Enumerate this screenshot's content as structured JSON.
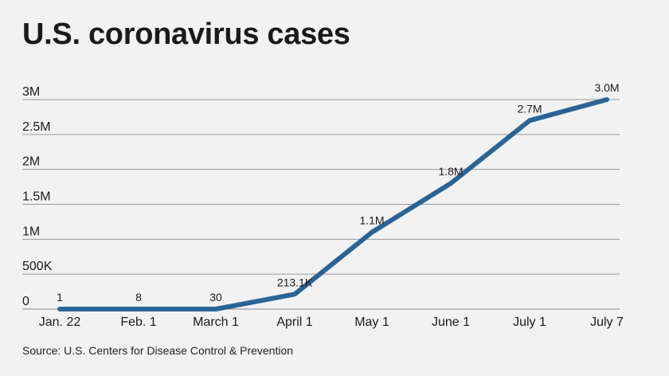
{
  "title": "U.S. coronavirus cases",
  "source": "Source: U.S. Centers for Disease Control & Prevention",
  "chart_data": {
    "type": "line",
    "categories": [
      "Jan. 22",
      "Feb. 1",
      "March 1",
      "April 1",
      "May 1",
      "June 1",
      "July 1",
      "July 7"
    ],
    "values": [
      1,
      8,
      30,
      213100,
      1100000,
      1800000,
      2700000,
      3000000
    ],
    "data_labels": [
      "1",
      "8",
      "30",
      "213.1K",
      "1.1M",
      "1.8M",
      "2.7M",
      "3.0M"
    ],
    "yticks": [
      0,
      500000,
      1000000,
      1500000,
      2000000,
      2500000,
      3000000
    ],
    "ytick_labels": [
      "0",
      "500K",
      "1M",
      "1.5M",
      "2M",
      "2.5M",
      "3M"
    ],
    "ylim": [
      0,
      3000000
    ],
    "grid": true,
    "line_color": "#2a6496",
    "grid_color": "#9a9a9a"
  }
}
